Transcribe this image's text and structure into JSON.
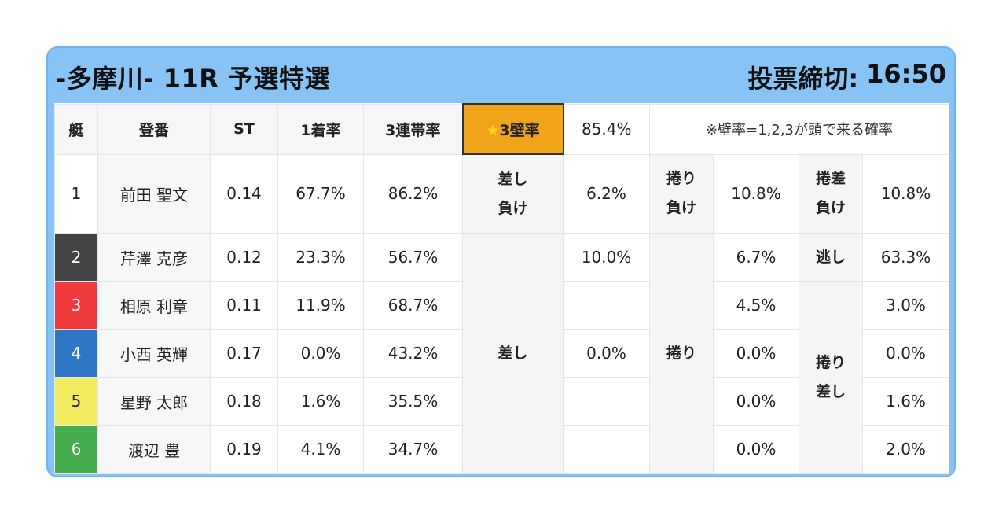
{
  "header": {
    "title": "-多摩川- 11R 予選特選",
    "deadline_label": "投票締切:",
    "deadline_time": "16:50"
  },
  "table": {
    "columns": {
      "boat": "艇",
      "name": "登番",
      "st": "ST",
      "first_rate": "1着率",
      "top3_rate": "3連帯率",
      "kabe_star": "★",
      "kabe_label": "3壁率",
      "kabe_value": "85.4%",
      "note": "※壁率=1,2,3が頭で来る確率"
    },
    "racers": [
      {
        "boat": "1",
        "name": "前田 聖文",
        "st": "0.14",
        "first": "67.7%",
        "top3": "86.2%",
        "color": "#ffffff"
      },
      {
        "boat": "2",
        "name": "芹澤 克彦",
        "st": "0.12",
        "first": "23.3%",
        "top3": "56.7%",
        "color": "#444444"
      },
      {
        "boat": "3",
        "name": "相原 利章",
        "st": "0.11",
        "first": "11.9%",
        "top3": "68.7%",
        "color": "#f03a3e"
      },
      {
        "boat": "4",
        "name": "小西 英輝",
        "st": "0.17",
        "first": "0.0%",
        "top3": "43.2%",
        "color": "#2f78c8"
      },
      {
        "boat": "5",
        "name": "星野 太郎",
        "st": "0.18",
        "first": "1.6%",
        "top3": "35.5%",
        "color": "#f2ec60"
      },
      {
        "boat": "6",
        "name": "渡辺 豊",
        "st": "0.19",
        "first": "4.1%",
        "top3": "34.7%",
        "color": "#46ad4e"
      }
    ],
    "row1": {
      "sashimake_line1": "差し",
      "sashimake_line2": "負け",
      "sashimake_value": "6.2%",
      "makurimake_line1": "捲り",
      "makurimake_line2": "負け",
      "makurimake_value": "10.8%",
      "makurisashimake_line1": "捲差",
      "makurisashimake_line2": "負け",
      "makurisashimake_value": "10.8%"
    },
    "sashi_label": "差し",
    "sashi_values": [
      "10.0%",
      "",
      "0.0%",
      "",
      ""
    ],
    "makuri_label": "捲り",
    "makuri_values": [
      "6.7%",
      "4.5%",
      "0.0%",
      "0.0%",
      "0.0%"
    ],
    "nige_label": "逃し",
    "nige_value": "63.3%",
    "makurisashi_line1": "捲り",
    "makurisashi_line2": "差し",
    "makurisashi_values": [
      "3.0%",
      "0.0%",
      "1.6%",
      "2.0%"
    ]
  }
}
